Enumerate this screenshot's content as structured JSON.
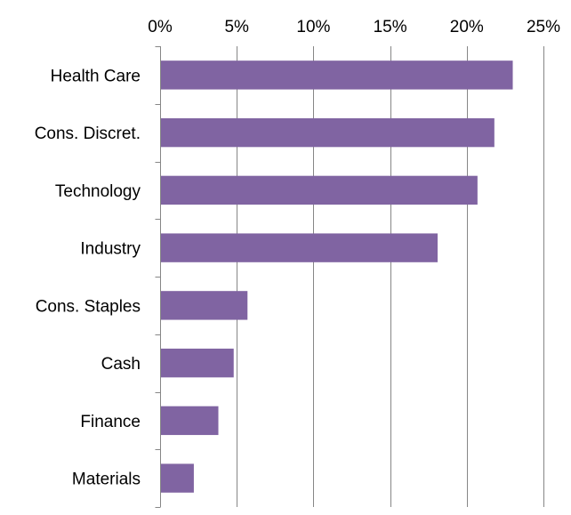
{
  "chart_data": {
    "type": "bar",
    "orientation": "horizontal",
    "categories": [
      "Health Care",
      "Cons. Discret.",
      "Technology",
      "Industry",
      "Cons. Staples",
      "Cash",
      "Finance",
      "Materials"
    ],
    "values": [
      23.0,
      21.8,
      20.7,
      18.1,
      5.7,
      4.8,
      3.8,
      2.2
    ],
    "value_unit": "%",
    "xlim": [
      0,
      25
    ],
    "xticks": [
      0,
      5,
      10,
      15,
      20,
      25
    ],
    "xtick_labels": [
      "0%",
      "5%",
      "10%",
      "15%",
      "20%",
      "25%"
    ],
    "x_axis_position": "top",
    "grid": true,
    "legend": "none",
    "title": "",
    "xlabel": "",
    "ylabel": "",
    "bar_color": "#8064A2"
  }
}
